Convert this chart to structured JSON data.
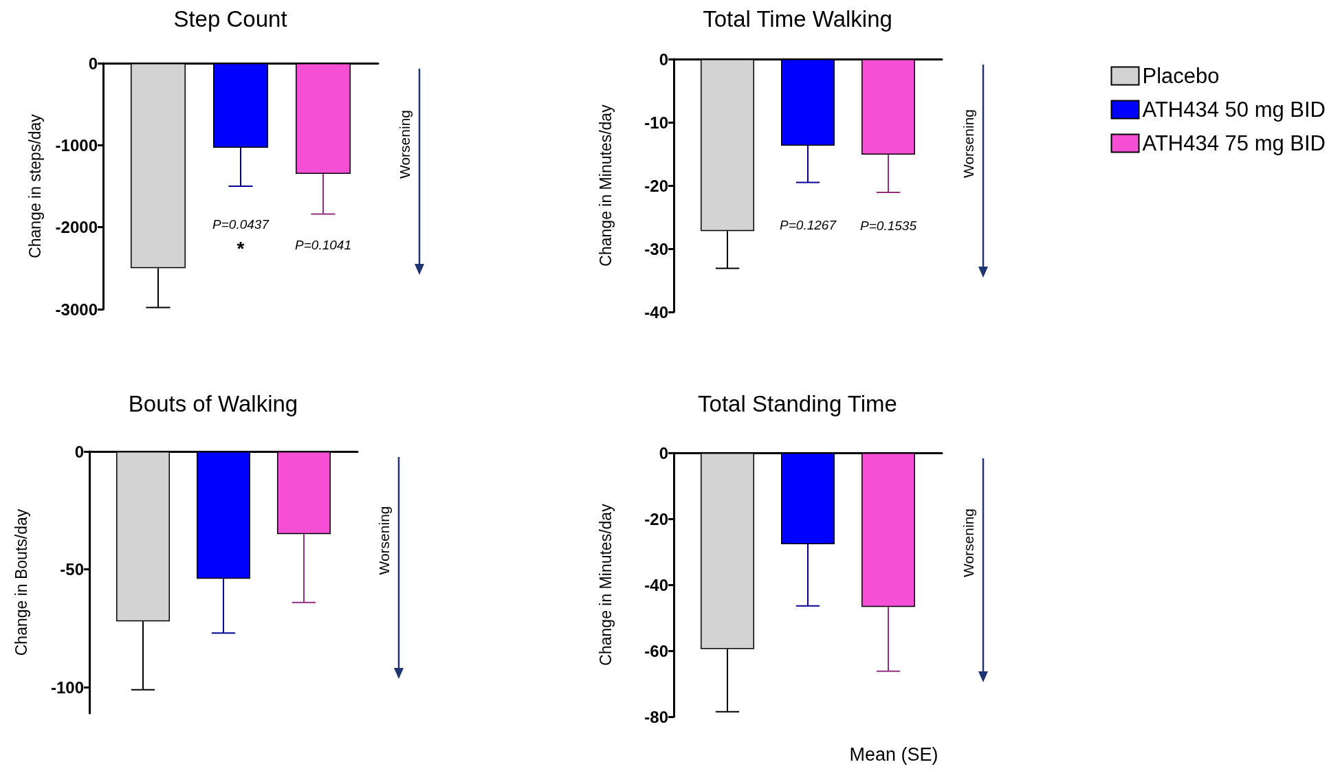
{
  "chart_data": [
    {
      "type": "bar",
      "title": "Step Count",
      "ylabel": "Change in steps/day",
      "categories": [
        null
      ],
      "ylim": [
        -3000,
        0
      ],
      "yticks": [
        0,
        -1000,
        -2000,
        -3000
      ],
      "tick_labels": "y",
      "grid": false,
      "legend": false,
      "series": [
        {
          "color": "#d3d3d3",
          "values": [
            -2500
          ],
          "errors": [
            [
              -2980,
              -2500
            ]
          ]
        },
        {
          "color": "#0000ff",
          "values": [
            -1030
          ],
          "errors": [
            [
              -1500,
              -1030
            ]
          ]
        },
        {
          "color": "#f54fd6",
          "values": [
            -1350
          ],
          "errors": [
            [
              -1840,
              -1350
            ]
          ]
        }
      ],
      "annotations": [
        "P=0.0437",
        "*",
        "P=0.1041",
        "Worsening"
      ]
    },
    {
      "type": "bar",
      "title": "Total Time Walking",
      "ylabel": "Change in Minutes/day",
      "categories": [
        null
      ],
      "ylim": [
        -40,
        0
      ],
      "yticks": [
        0,
        -10,
        -20,
        -30,
        -40
      ],
      "tick_labels": "y",
      "grid": false,
      "legend": "right",
      "series": [
        {
          "name": "Placebo",
          "color": "#d3d3d3",
          "values": [
            -27.2
          ],
          "errors": [
            [
              -33.1,
              -27.2
            ]
          ]
        },
        {
          "name": "ATH434 50 mg BID",
          "color": "#0000ff",
          "values": [
            -13.7
          ],
          "errors": [
            [
              -19.5,
              -13.7
            ]
          ]
        },
        {
          "name": "ATH434 75 mg BID",
          "color": "#f54fd6",
          "values": [
            -15.1
          ],
          "errors": [
            [
              -21.1,
              -15.1
            ]
          ]
        }
      ],
      "annotations": [
        "P=0.1267",
        "P=0.1535",
        "Worsening"
      ]
    },
    {
      "type": "bar",
      "title": "Bouts of Walking",
      "ylabel": "Change in Bouts/day",
      "categories": [
        null
      ],
      "ylim": [
        -111,
        0
      ],
      "yticks": [
        0,
        -50,
        -100
      ],
      "tick_labels": "y",
      "grid": false,
      "legend": false,
      "series": [
        {
          "color": "#d3d3d3",
          "values": [
            -72
          ],
          "errors": [
            [
              -101,
              -72
            ]
          ]
        },
        {
          "color": "#0000ff",
          "values": [
            -54
          ],
          "errors": [
            [
              -77,
              -54
            ]
          ]
        },
        {
          "color": "#f54fd6",
          "values": [
            -35
          ],
          "errors": [
            [
              -64,
              -35
            ]
          ]
        }
      ],
      "annotations": [
        "Worsening"
      ]
    },
    {
      "type": "bar",
      "title": "Total Standing Time",
      "ylabel": "Change in Minutes/day",
      "categories": [
        null
      ],
      "ylim": [
        -80,
        0
      ],
      "yticks": [
        0,
        -20,
        -40,
        -60,
        -80
      ],
      "tick_labels": "y",
      "grid": false,
      "legend": false,
      "series": [
        {
          "color": "#d3d3d3",
          "values": [
            -59.5
          ],
          "errors": [
            [
              -78.5,
              -59.5
            ]
          ]
        },
        {
          "color": "#0000ff",
          "values": [
            -27.7
          ],
          "errors": [
            [
              -46.4,
              -27.7
            ]
          ]
        },
        {
          "color": "#f54fd6",
          "values": [
            -46.7
          ],
          "errors": [
            [
              -66.2,
              -46.7
            ]
          ]
        }
      ],
      "annotations": [
        "Worsening",
        "Mean (SE)"
      ]
    }
  ]
}
